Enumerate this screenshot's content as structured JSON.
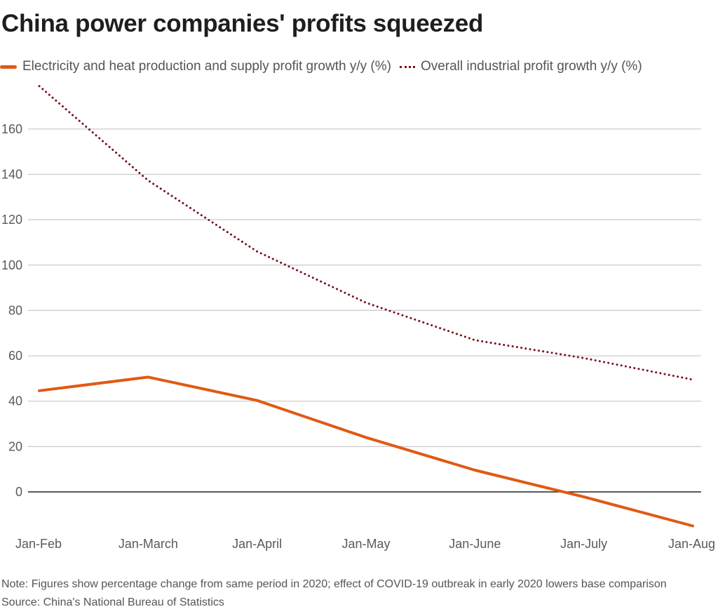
{
  "chart_data": {
    "type": "line",
    "title": "China power companies' profits squeezed",
    "xlabel": "",
    "ylabel": "",
    "categories": [
      "Jan-Feb",
      "Jan-March",
      "Jan-April",
      "Jan-May",
      "Jan-June",
      "Jan-July",
      "Jan-Aug"
    ],
    "yticks": [
      0,
      20,
      40,
      60,
      80,
      100,
      120,
      140,
      160
    ],
    "ylim": [
      -20,
      180
    ],
    "grid": true,
    "legend_position": "top-left",
    "series": [
      {
        "name": "Electricity and heat production and supply profit growth y/y (%)",
        "style": "solid",
        "color": "#e05a14",
        "values": [
          44.6,
          50.6,
          40.3,
          24.0,
          9.6,
          -2.2,
          -15.0
        ]
      },
      {
        "name": "Overall industrial profit growth y/y (%)",
        "style": "dotted",
        "color": "#7a0f1c",
        "values": [
          178.9,
          137.3,
          106.0,
          83.4,
          66.9,
          59.0,
          49.5
        ]
      }
    ],
    "note": "Note: Figures show percentage change from same period in 2020; effect of COVID-19 outbreak in early 2020 lowers base comparison",
    "source": "Source: China's National Bureau of Statistics"
  }
}
